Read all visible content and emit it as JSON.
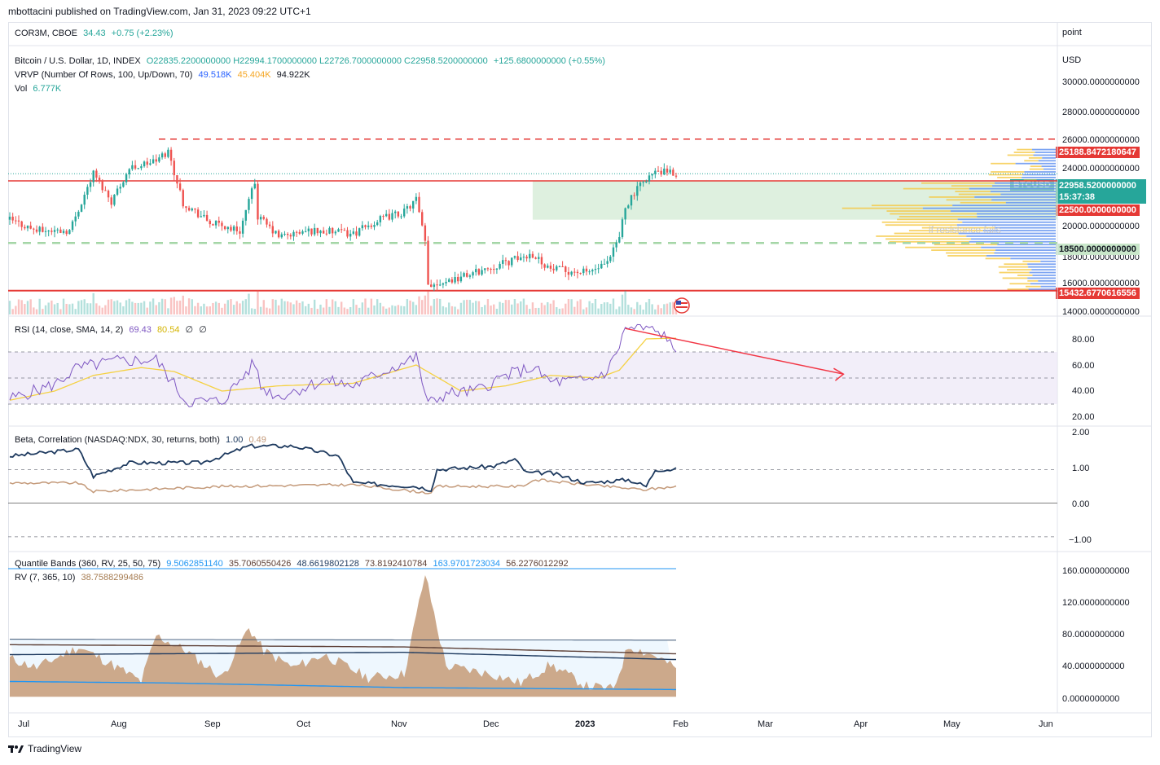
{
  "header": {
    "publish": "mbottacini published on TradingView.com, Jan 31, 2023 09:22 UTC+1"
  },
  "compare": {
    "symbol": "COR3M, CBOE",
    "value": "34.43",
    "change": "+0.75 (+2.23%)",
    "scale_label": "point"
  },
  "main_legend": {
    "title": "Bitcoin / U.S. Dollar, 1D, INDEX",
    "o": "O22835.2200000000",
    "h": "H22994.1700000000",
    "l": "L22726.7000000000",
    "c": "C22958.5200000000",
    "chg": "+125.6800000000 (+0.55%)",
    "vrvp_label": "VRVP (Number Of Rows, 100, Up/Down, 70)",
    "vrvp_up": "49.518K",
    "vrvp_down": "45.404K",
    "vrvp_total": "94.922K",
    "vol_label": "Vol",
    "vol_value": "6.777K",
    "currency": "USD",
    "annotation": "if resistance fails"
  },
  "price_axis": [
    "30000.0000000000",
    "28000.0000000000",
    "26000.0000000000",
    "24000.0000000000",
    "20000.0000000000",
    "18000.0000000000",
    "16000.0000000000",
    "14000.0000000000"
  ],
  "price_tags": {
    "top_dashed": "25188.8472180647",
    "symbol": "BTCUSD",
    "last": "22958.5200000000",
    "countdown": "15:37:38",
    "resistance": "22500.0000000000",
    "support_dashed": "18500.0000000000",
    "bottom": "15432.6770616556"
  },
  "rsi": {
    "label": "RSI (14, close, SMA, 14, 2)",
    "v1": "69.43",
    "v2": "80.54",
    "v3": "∅",
    "v4": "∅",
    "axis": [
      "80.00",
      "60.00",
      "40.00",
      "20.00"
    ]
  },
  "beta": {
    "label": "Beta, Correlation (NASDAQ:NDX, 30, returns, both)",
    "v1": "1.00",
    "v2": "0.49",
    "axis": [
      "2.00",
      "1.00",
      "0.00",
      "−1.00"
    ]
  },
  "quant": {
    "label": "Quantile Bands (360, RV, 25, 50, 75)",
    "vals": [
      "9.5062851140",
      "35.7060550426",
      "48.6619802128",
      "73.8192410784",
      "163.9701723034",
      "56.2276012292"
    ],
    "rv_label": "RV (7, 365, 10)",
    "rv_value": "38.7588299486",
    "axis": [
      "160.0000000000",
      "120.0000000000",
      "80.0000000000",
      "40.0000000000",
      "0.0000000000"
    ]
  },
  "time_axis": [
    "Jul",
    "Aug",
    "Sep",
    "Oct",
    "Nov",
    "Dec",
    "2023",
    "Feb",
    "Mar",
    "Apr",
    "May",
    "Jun"
  ],
  "footer": {
    "brand": "TradingView"
  },
  "colors": {
    "up": "#26a69a",
    "down": "#ef5350",
    "red_line": "#e53935",
    "rsi": "#7e57c2",
    "rsi_ma": "#f5d142",
    "beta": "#1e3a5f",
    "corr": "#c49a7a",
    "rv_fill": "#c8a07e",
    "blue_tag": "#2962ff"
  },
  "chart_data": [
    {
      "type": "candlestick",
      "title": "Bitcoin / U.S. Dollar, 1D, INDEX",
      "x_range": [
        "2022-06-22",
        "2023-01-31"
      ],
      "ylim": [
        14000,
        31000
      ],
      "close_points": [
        [
          "2022-06-22",
          20000
        ],
        [
          "2022-07-01",
          19300
        ],
        [
          "2022-07-12",
          19300
        ],
        [
          "2022-07-20",
          23000
        ],
        [
          "2022-07-26",
          21200
        ],
        [
          "2022-08-01",
          23300
        ],
        [
          "2022-08-10",
          23800
        ],
        [
          "2022-08-14",
          24400
        ],
        [
          "2022-08-19",
          21100
        ],
        [
          "2022-08-28",
          19800
        ],
        [
          "2022-09-07",
          19300
        ],
        [
          "2022-09-12",
          22400
        ],
        [
          "2022-09-13",
          20200
        ],
        [
          "2022-09-20",
          18900
        ],
        [
          "2022-10-01",
          19300
        ],
        [
          "2022-10-15",
          19100
        ],
        [
          "2022-10-25",
          20100
        ],
        [
          "2022-11-01",
          20500
        ],
        [
          "2022-11-05",
          21300
        ],
        [
          "2022-11-08",
          18500
        ],
        [
          "2022-11-09",
          15800
        ],
        [
          "2022-11-20",
          16300
        ],
        [
          "2022-12-01",
          17000
        ],
        [
          "2022-12-14",
          17800
        ],
        [
          "2022-12-20",
          16800
        ],
        [
          "2023-01-01",
          16600
        ],
        [
          "2023-01-08",
          17100
        ],
        [
          "2023-01-12",
          18900
        ],
        [
          "2023-01-14",
          20900
        ],
        [
          "2023-01-21",
          22700
        ],
        [
          "2023-01-25",
          23100
        ],
        [
          "2023-01-30",
          22958
        ]
      ],
      "levels": {
        "dashed_top": 25188.85,
        "resistance": 22500,
        "support_dashed": 18500,
        "bottom": 15432.68
      },
      "zone": {
        "from": "2022-12-14",
        "to": "2023-01-31",
        "low": 20000,
        "high": 22500
      }
    },
    {
      "type": "line",
      "title": "RSI (14, close, SMA, 14, 2)",
      "ylim": [
        15,
        95
      ],
      "bands": [
        30,
        50,
        70
      ],
      "series": [
        {
          "name": "RSI",
          "points": [
            [
              "2022-06-22",
              34
            ],
            [
              "2022-07-07",
              45
            ],
            [
              "2022-07-14",
              57
            ],
            [
              "2022-07-20",
              60
            ],
            [
              "2022-07-28",
              63
            ],
            [
              "2022-08-10",
              64
            ],
            [
              "2022-08-16",
              45
            ],
            [
              "2022-08-20",
              32
            ],
            [
              "2022-09-01",
              32
            ],
            [
              "2022-09-12",
              62
            ],
            [
              "2022-09-14",
              43
            ],
            [
              "2022-09-20",
              36
            ],
            [
              "2022-10-05",
              48
            ],
            [
              "2022-10-15",
              44
            ],
            [
              "2022-10-25",
              55
            ],
            [
              "2022-11-05",
              66
            ],
            [
              "2022-11-09",
              30
            ],
            [
              "2022-11-15",
              38
            ],
            [
              "2022-11-25",
              40
            ],
            [
              "2022-12-05",
              52
            ],
            [
              "2022-12-14",
              58
            ],
            [
              "2022-12-20",
              47
            ],
            [
              "2023-01-01",
              48
            ],
            [
              "2023-01-08",
              55
            ],
            [
              "2023-01-12",
              75
            ],
            [
              "2023-01-14",
              88
            ],
            [
              "2023-01-21",
              88
            ],
            [
              "2023-01-28",
              82
            ],
            [
              "2023-01-30",
              69.43
            ]
          ]
        },
        {
          "name": "RSI-based MA",
          "points": [
            [
              "2022-06-22",
              33
            ],
            [
              "2022-07-07",
              40
            ],
            [
              "2022-07-20",
              52
            ],
            [
              "2022-08-05",
              58
            ],
            [
              "2022-08-16",
              55
            ],
            [
              "2022-09-01",
              40
            ],
            [
              "2022-09-20",
              44
            ],
            [
              "2022-10-15",
              46
            ],
            [
              "2022-11-05",
              60
            ],
            [
              "2022-11-20",
              40
            ],
            [
              "2022-12-05",
              44
            ],
            [
              "2022-12-20",
              52
            ],
            [
              "2023-01-05",
              50
            ],
            [
              "2023-01-12",
              56
            ],
            [
              "2023-01-21",
              80
            ],
            [
              "2023-01-30",
              80.54
            ]
          ]
        }
      ],
      "trendline": {
        "from": [
          "2023-01-14",
          88
        ],
        "to": [
          "2023-03-28",
          53
        ]
      }
    },
    {
      "type": "line",
      "title": "Beta, Correlation (NASDAQ:NDX, 30, returns, both)",
      "ylim": [
        -1.1,
        2.1
      ],
      "series": [
        {
          "name": "Beta",
          "points": [
            [
              "2022-06-22",
              1.4
            ],
            [
              "2022-07-15",
              1.6
            ],
            [
              "2022-07-20",
              0.8
            ],
            [
              "2022-08-01",
              1.2
            ],
            [
              "2022-08-25",
              1.2
            ],
            [
              "2022-09-01",
              1.4
            ],
            [
              "2022-09-10",
              1.7
            ],
            [
              "2022-09-25",
              1.7
            ],
            [
              "2022-10-10",
              1.4
            ],
            [
              "2022-10-15",
              0.6
            ],
            [
              "2022-11-05",
              0.5
            ],
            [
              "2022-11-10",
              0.4
            ],
            [
              "2022-11-12",
              1.0
            ],
            [
              "2022-12-01",
              1.1
            ],
            [
              "2022-12-08",
              1.3
            ],
            [
              "2022-12-12",
              0.9
            ],
            [
              "2022-12-20",
              0.9
            ],
            [
              "2023-01-01",
              0.6
            ],
            [
              "2023-01-15",
              0.7
            ],
            [
              "2023-01-21",
              0.5
            ],
            [
              "2023-01-24",
              1.0
            ],
            [
              "2023-01-30",
              1.0
            ]
          ]
        },
        {
          "name": "Correlation",
          "points": [
            [
              "2022-06-22",
              0.6
            ],
            [
              "2022-07-15",
              0.6
            ],
            [
              "2022-07-20",
              0.35
            ],
            [
              "2022-09-01",
              0.5
            ],
            [
              "2022-10-15",
              0.55
            ],
            [
              "2022-11-10",
              0.3
            ],
            [
              "2022-11-12",
              0.5
            ],
            [
              "2022-12-10",
              0.5
            ],
            [
              "2022-12-15",
              0.7
            ],
            [
              "2023-01-01",
              0.55
            ],
            [
              "2023-01-20",
              0.4
            ],
            [
              "2023-01-30",
              0.49
            ]
          ]
        }
      ]
    },
    {
      "type": "area",
      "title": "Quantile Bands (360, RV, 25, 50, 75)",
      "ylim": [
        -5,
        165
      ],
      "series": [
        {
          "name": "RV",
          "points": [
            [
              "2022-06-22",
              50
            ],
            [
              "2022-07-01",
              38
            ],
            [
              "2022-07-15",
              65
            ],
            [
              "2022-07-25",
              45
            ],
            [
              "2022-08-05",
              20
            ],
            [
              "2022-08-10",
              80
            ],
            [
              "2022-08-20",
              60
            ],
            [
              "2022-09-01",
              25
            ],
            [
              "2022-09-10",
              90
            ],
            [
              "2022-09-15",
              60
            ],
            [
              "2022-09-25",
              38
            ],
            [
              "2022-10-05",
              55
            ],
            [
              "2022-10-20",
              25
            ],
            [
              "2022-11-01",
              30
            ],
            [
              "2022-11-08",
              160
            ],
            [
              "2022-11-15",
              40
            ],
            [
              "2022-11-30",
              30
            ],
            [
              "2022-12-10",
              18
            ],
            [
              "2022-12-20",
              42
            ],
            [
              "2023-01-01",
              14
            ],
            [
              "2023-01-10",
              10
            ],
            [
              "2023-01-15",
              66
            ],
            [
              "2023-01-25",
              52
            ],
            [
              "2023-01-30",
              38.76
            ]
          ]
        },
        {
          "name": "Q25",
          "points": [
            [
              "2022-06-22",
              20
            ],
            [
              "2022-08-15",
              18
            ],
            [
              "2022-11-01",
              12
            ],
            [
              "2023-01-30",
              9.5
            ]
          ]
        },
        {
          "name": "Q50",
          "points": [
            [
              "2022-06-22",
              55
            ],
            [
              "2022-11-01",
              58
            ],
            [
              "2023-01-30",
              48.66
            ]
          ]
        },
        {
          "name": "Q75",
          "points": [
            [
              "2022-06-22",
              68
            ],
            [
              "2022-11-01",
              65
            ],
            [
              "2023-01-30",
              56.23
            ]
          ]
        },
        {
          "name": "Q90",
          "points": [
            [
              "2022-06-22",
              75
            ],
            [
              "2023-01-30",
              73.82
            ]
          ]
        }
      ]
    }
  ]
}
